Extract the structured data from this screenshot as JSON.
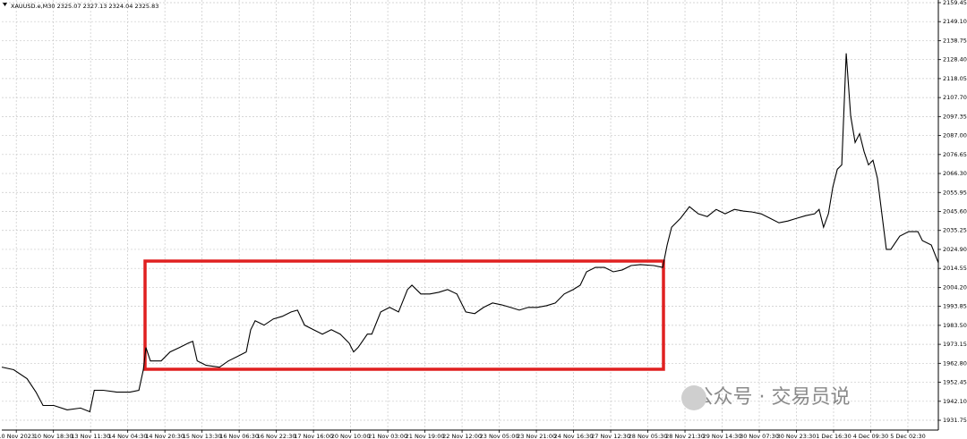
{
  "chart_data": {
    "type": "line",
    "title": "XAUUSD.e,M30  2325.07 2327.13 2324.04 2325.83",
    "annotation": "公众号 · 交易员说",
    "x": [
      -0.39,
      -0.07,
      0.29,
      0.53,
      0.72,
      1.01,
      1.37,
      1.73,
      1.98,
      2.1,
      2.34,
      2.7,
      3.06,
      3.3,
      3.42,
      3.49,
      3.61,
      3.9,
      4.14,
      4.39,
      4.63,
      4.75,
      4.87,
      5.11,
      5.47,
      5.71,
      5.95,
      6.19,
      6.31,
      6.43,
      6.67,
      6.92,
      7.16,
      7.4,
      7.57,
      7.76,
      8.0,
      8.24,
      8.48,
      8.72,
      8.96,
      9.08,
      9.2,
      9.45,
      9.57,
      9.81,
      10.05,
      10.29,
      10.53,
      10.65,
      10.89,
      11.13,
      11.37,
      11.61,
      11.86,
      12.1,
      12.34,
      12.58,
      12.82,
      13.06,
      13.3,
      13.54,
      13.78,
      14.02,
      14.27,
      14.51,
      14.75,
      14.99,
      15.18,
      15.35,
      15.59,
      15.83,
      16.07,
      16.31,
      16.55,
      16.8,
      17.16,
      17.4,
      17.52,
      17.64,
      17.88,
      18.12,
      18.36,
      18.6,
      18.84,
      19.08,
      19.33,
      19.57,
      19.81,
      20.05,
      20.29,
      20.53,
      20.77,
      21.01,
      21.25,
      21.49,
      21.61,
      21.73,
      21.86,
      21.98,
      22.1,
      22.22,
      22.34,
      22.46,
      22.58,
      22.7,
      22.82,
      22.94,
      23.06,
      23.18,
      23.3,
      23.42,
      23.54,
      23.78,
      24.02,
      24.27,
      24.39,
      24.63,
      24.82
    ],
    "series": [
      {
        "color": "#000000",
        "values": [
          1960.7,
          1959.3,
          1954.4,
          1947.1,
          1939.8,
          1939.8,
          1937.4,
          1938.4,
          1936.4,
          1948.1,
          1948.1,
          1947.1,
          1947.1,
          1948.1,
          1959.3,
          1971.4,
          1964.1,
          1964.1,
          1969.0,
          1971.4,
          1973.8,
          1974.8,
          1964.1,
          1961.7,
          1960.7,
          1964.1,
          1966.5,
          1969.0,
          1981.1,
          1986.0,
          1983.6,
          1987.0,
          1988.4,
          1990.8,
          1991.8,
          1983.6,
          1981.1,
          1978.7,
          1981.1,
          1978.7,
          1973.8,
          1969.0,
          1971.4,
          1978.7,
          1978.7,
          1990.8,
          1993.3,
          1990.8,
          2003.0,
          2005.4,
          2000.6,
          2000.6,
          2001.5,
          2003.0,
          2000.6,
          1990.8,
          1989.9,
          1993.3,
          1995.7,
          1994.7,
          1993.3,
          1991.8,
          1993.3,
          1993.3,
          1994.2,
          1995.7,
          2000.6,
          2003.0,
          2005.4,
          2012.7,
          2015.1,
          2015.1,
          2012.7,
          2013.7,
          2016.1,
          2016.6,
          2016.1,
          2015.1,
          2027.3,
          2037.0,
          2041.9,
          2048.2,
          2044.3,
          2042.8,
          2046.7,
          2044.3,
          2046.7,
          2045.8,
          2045.3,
          2044.3,
          2041.9,
          2039.4,
          2040.4,
          2041.9,
          2043.3,
          2044.3,
          2046.7,
          2037.0,
          2044.3,
          2058.9,
          2068.6,
          2071.0,
          2131.8,
          2097.7,
          2083.2,
          2088.0,
          2078.3,
          2071.0,
          2073.5,
          2063.7,
          2044.3,
          2024.9,
          2024.9,
          2032.1,
          2034.6,
          2034.6,
          2029.7,
          2027.3,
          2017.6
        ]
      }
    ],
    "xlim": [
      -0.39,
      24.82
    ],
    "xticks": [
      {
        "value": 0,
        "label": "10 Nov 2023"
      },
      {
        "value": 1,
        "label": "10 Nov 18:30"
      },
      {
        "value": 2,
        "label": "13 Nov 11:30"
      },
      {
        "value": 3,
        "label": "14 Nov 04:30"
      },
      {
        "value": 4,
        "label": "14 Nov 20:30"
      },
      {
        "value": 5,
        "label": "15 Nov 13:30"
      },
      {
        "value": 6,
        "label": "16 Nov 06:30"
      },
      {
        "value": 7,
        "label": "16 Nov 22:30"
      },
      {
        "value": 8,
        "label": "17 Nov 16:00"
      },
      {
        "value": 9,
        "label": "20 Nov 10:00"
      },
      {
        "value": 10,
        "label": "21 Nov 03:00"
      },
      {
        "value": 11,
        "label": "21 Nov 19:00"
      },
      {
        "value": 12,
        "label": "22 Nov 12:00"
      },
      {
        "value": 13,
        "label": "23 Nov 05:00"
      },
      {
        "value": 14,
        "label": "23 Nov 21:00"
      },
      {
        "value": 15,
        "label": "24 Nov 16:30"
      },
      {
        "value": 16,
        "label": "27 Nov 12:30"
      },
      {
        "value": 17,
        "label": "28 Nov 05:30"
      },
      {
        "value": 18,
        "label": "28 Nov 21:30"
      },
      {
        "value": 19,
        "label": "29 Nov 14:30"
      },
      {
        "value": 20,
        "label": "30 Nov 07:30"
      },
      {
        "value": 21,
        "label": "30 Nov 23:30"
      },
      {
        "value": 22,
        "label": "1 Dec 16:30"
      },
      {
        "value": 23,
        "label": "4 Dec 09:30"
      },
      {
        "value": 24,
        "label": "5 Dec 02:30"
      }
    ],
    "ylim": [
      1926.4,
      2160.9
    ],
    "yticks": [
      2159.45,
      {
        "value": 2149.1,
        "label": "2149.10"
      },
      2138.75,
      {
        "value": 2128.4,
        "label": "2128.40"
      },
      2118.05,
      {
        "value": 2107.7,
        "label": "2107.70"
      },
      2097.35,
      {
        "value": 2087,
        "label": "2087.00"
      },
      2076.65,
      {
        "value": 2066.3,
        "label": "2066.30"
      },
      2055.95,
      {
        "value": 2045.6,
        "label": "2045.60"
      },
      2035.25,
      {
        "value": 2024.9,
        "label": "2024.90"
      },
      2014.55,
      {
        "value": 2004.2,
        "label": "2004.20"
      },
      1993.85,
      {
        "value": 1983.5,
        "label": "1983.50"
      },
      1973.15,
      {
        "value": 1962.8,
        "label": "1962.80"
      },
      1952.45,
      {
        "value": 1942.1,
        "label": "1942.10"
      },
      1931.75
    ],
    "grid": true
  }
}
